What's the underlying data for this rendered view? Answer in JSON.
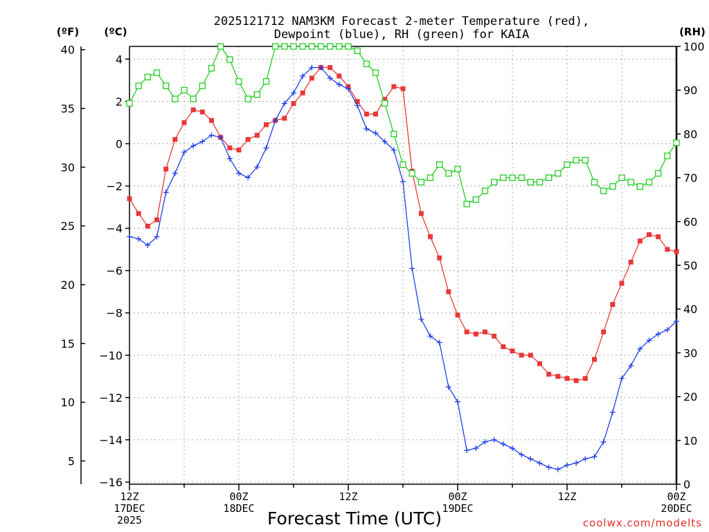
{
  "chart_data": {
    "type": "line",
    "title": "2025121712 NAM3KM Forecast 2-meter Temperature (red),",
    "subtitle": "Dewpoint (blue), RH (green) for KAIA",
    "xlabel": "Forecast Time (UTC)",
    "credit": "coolwx.com/modelts",
    "units": {
      "left_f": "(ºF)",
      "left_c": "(ºC)",
      "right_rh": "(RH)"
    },
    "xlim": [
      0,
      60
    ],
    "ylim_c": [
      -16.1,
      4.6
    ],
    "ylim_rh": [
      0,
      100
    ],
    "x_ticks": [
      {
        "hour": 0,
        "lines": [
          "12Z",
          "17DEC",
          "2025"
        ]
      },
      {
        "hour": 12,
        "lines": [
          "00Z",
          "18DEC"
        ]
      },
      {
        "hour": 24,
        "lines": [
          "12Z"
        ]
      },
      {
        "hour": 36,
        "lines": [
          "00Z",
          "19DEC"
        ]
      },
      {
        "hour": 48,
        "lines": [
          "12Z"
        ]
      },
      {
        "hour": 60,
        "lines": [
          "00Z",
          "20DEC"
        ]
      }
    ],
    "y_ticks_c": [
      "4",
      "2",
      "0",
      "−2",
      "−4",
      "−6",
      "−8",
      "−10",
      "−12",
      "−14",
      "−16"
    ],
    "y_ticks_c_values": [
      4,
      2,
      0,
      -2,
      -4,
      -6,
      -8,
      -10,
      -12,
      -14,
      -16
    ],
    "y_ticks_f": [
      "40",
      "35",
      "30",
      "25",
      "20",
      "15",
      "10",
      "5"
    ],
    "y_ticks_f_values": [
      40,
      35,
      30,
      25,
      20,
      15,
      10,
      5
    ],
    "y_ticks_rh": [
      "100",
      "90",
      "80",
      "70",
      "60",
      "50",
      "40",
      "30",
      "20",
      "10",
      "0"
    ],
    "y_ticks_rh_values": [
      100,
      90,
      80,
      70,
      60,
      50,
      40,
      30,
      20,
      10,
      0
    ],
    "series": [
      {
        "name": "2-meter Temperature",
        "color": "#e83838",
        "axis": "c",
        "marker": "filled-square",
        "x": [
          0,
          1,
          2,
          3,
          4,
          5,
          6,
          7,
          8,
          9,
          10,
          11,
          12,
          13,
          14,
          15,
          16,
          17,
          18,
          19,
          20,
          21,
          22,
          23,
          24,
          25,
          26,
          27,
          28,
          29,
          30,
          31,
          32,
          33,
          34,
          35,
          36,
          37,
          38,
          39,
          40,
          41,
          42,
          43,
          44,
          45,
          46,
          47,
          48,
          49,
          50,
          51,
          52,
          53,
          54,
          55,
          56,
          57,
          58,
          59,
          60
        ],
        "values": [
          -2.6,
          -3.3,
          -3.9,
          -3.6,
          -1.2,
          0.2,
          1.0,
          1.6,
          1.5,
          1.1,
          0.3,
          -0.2,
          -0.3,
          0.2,
          0.4,
          0.9,
          1.1,
          1.2,
          1.9,
          2.4,
          3.1,
          3.6,
          3.6,
          3.2,
          2.7,
          2.0,
          1.4,
          1.4,
          2.1,
          2.7,
          2.6,
          -1.3,
          -3.3,
          -4.4,
          -5.4,
          -7.0,
          -8.1,
          -8.9,
          -9.0,
          -8.9,
          -9.1,
          -9.6,
          -9.8,
          -10.0,
          -10.0,
          -10.4,
          -10.9,
          -11.0,
          -11.1,
          -11.2,
          -11.1,
          -10.2,
          -8.9,
          -7.6,
          -6.6,
          -5.6,
          -4.6,
          -4.3,
          -4.4,
          -5.0,
          -5.1
        ]
      },
      {
        "name": "Dewpoint",
        "color": "#1f3fe6",
        "axis": "c",
        "marker": "plus",
        "x": [
          0,
          1,
          2,
          3,
          4,
          5,
          6,
          7,
          8,
          9,
          10,
          11,
          12,
          13,
          14,
          15,
          16,
          17,
          18,
          19,
          20,
          21,
          22,
          23,
          24,
          25,
          26,
          27,
          28,
          29,
          30,
          31,
          32,
          33,
          34,
          35,
          36,
          37,
          38,
          39,
          40,
          41,
          42,
          43,
          44,
          45,
          46,
          47,
          48,
          49,
          50,
          51,
          52,
          53,
          54,
          55,
          56,
          57,
          58,
          59,
          60
        ],
        "values": [
          -4.4,
          -4.5,
          -4.8,
          -4.4,
          -2.3,
          -1.4,
          -0.4,
          -0.1,
          0.1,
          0.4,
          0.3,
          -0.7,
          -1.4,
          -1.6,
          -1.1,
          -0.2,
          1.1,
          1.9,
          2.4,
          3.2,
          3.6,
          3.6,
          3.1,
          2.8,
          2.6,
          1.8,
          0.7,
          0.5,
          0.1,
          -0.3,
          -1.8,
          -5.9,
          -8.3,
          -9.1,
          -9.4,
          -11.5,
          -12.2,
          -14.5,
          -14.4,
          -14.1,
          -14.0,
          -14.2,
          -14.4,
          -14.7,
          -14.9,
          -15.1,
          -15.3,
          -15.4,
          -15.2,
          -15.1,
          -14.9,
          -14.8,
          -14.1,
          -12.7,
          -11.1,
          -10.5,
          -9.7,
          -9.3,
          -9.0,
          -8.8,
          -8.4
        ]
      },
      {
        "name": "RH",
        "color": "#22cc22",
        "axis": "rh",
        "marker": "open-square",
        "x": [
          0,
          1,
          2,
          3,
          4,
          5,
          6,
          7,
          8,
          9,
          10,
          11,
          12,
          13,
          14,
          15,
          16,
          17,
          18,
          19,
          20,
          21,
          22,
          23,
          24,
          25,
          26,
          27,
          28,
          29,
          30,
          31,
          32,
          33,
          34,
          35,
          36,
          37,
          38,
          39,
          40,
          41,
          42,
          43,
          44,
          45,
          46,
          47,
          48,
          49,
          50,
          51,
          52,
          53,
          54,
          55,
          56,
          57,
          58,
          59,
          60
        ],
        "values": [
          87,
          91,
          93,
          94,
          91,
          88,
          90,
          88,
          91,
          95,
          100,
          97,
          92,
          88,
          89,
          92,
          100,
          100,
          100,
          100,
          100,
          100,
          100,
          100,
          100,
          99,
          96,
          94,
          87,
          80,
          73,
          71,
          69,
          70,
          73,
          71,
          72,
          64,
          65,
          67,
          69,
          70,
          70,
          70,
          69,
          69,
          70,
          71,
          73,
          74,
          74,
          69,
          67,
          68,
          70,
          69,
          68,
          69,
          71,
          75,
          78
        ]
      }
    ]
  }
}
